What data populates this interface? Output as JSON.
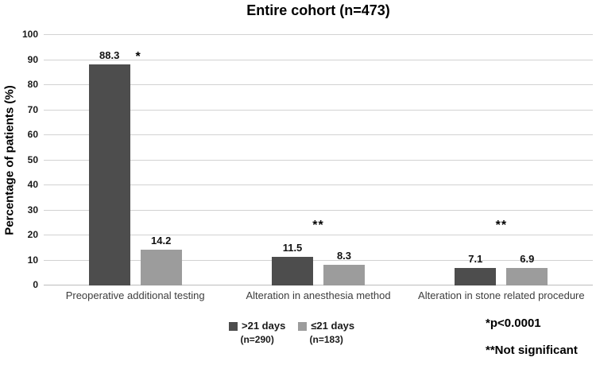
{
  "chart_data": {
    "type": "bar",
    "title": "Entire cohort (n=473)",
    "ylabel": "Percentage of patients (%)",
    "xlabel": "",
    "ylim": [
      0,
      100
    ],
    "ytick_step": 10,
    "grid": true,
    "legend_position": "bottom",
    "categories": [
      "Preoperative additional testing",
      "Alteration in anesthesia method",
      "Alteration in stone related procedure"
    ],
    "series": [
      {
        "name": ">21 days",
        "sublabel": "(n=290)",
        "color": "#4D4D4D",
        "values": [
          88.3,
          11.5,
          7.1
        ]
      },
      {
        "name": "≤21 days",
        "sublabel": "(n=183)",
        "color": "#9C9C9C",
        "values": [
          14.2,
          8.3,
          6.9
        ]
      }
    ],
    "significance_markers": [
      {
        "category_index": 0,
        "marker": "*",
        "placement": "beside-label"
      },
      {
        "category_index": 1,
        "marker": "**",
        "placement": "above-group"
      },
      {
        "category_index": 2,
        "marker": "**",
        "placement": "above-group"
      }
    ]
  },
  "annotations": {
    "star_note": "*p<0.0001",
    "double_star_note": "**Not significant"
  },
  "colors": {
    "gridline": "#d2d2d2",
    "baseline": "#bdbdbd",
    "background": "#ffffff"
  }
}
